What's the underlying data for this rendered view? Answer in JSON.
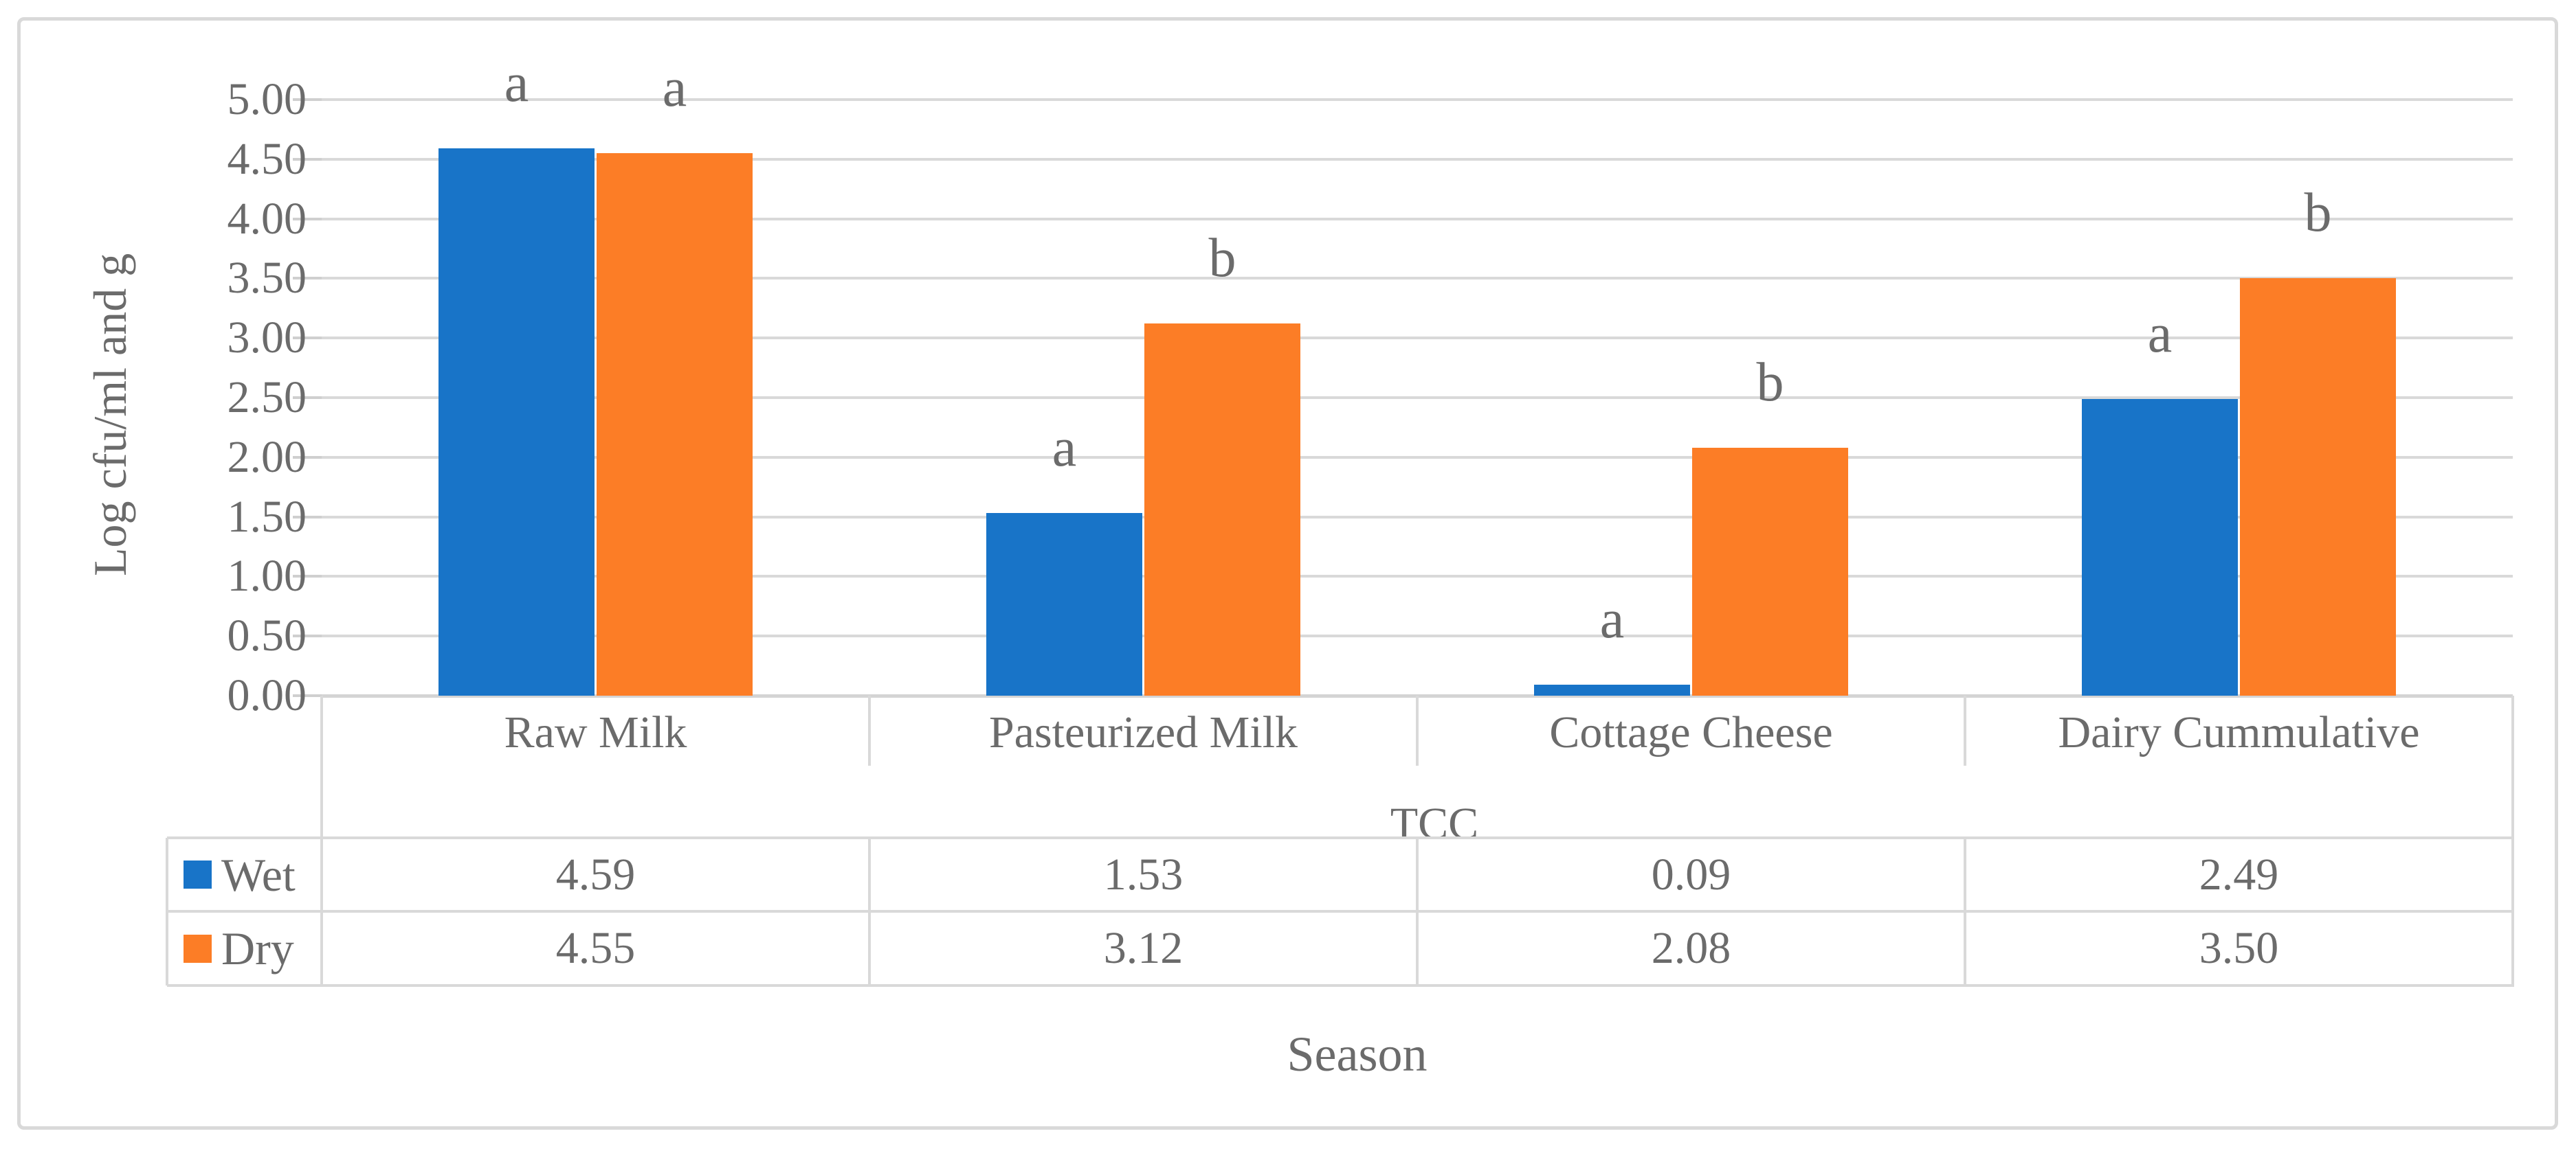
{
  "figure": {
    "frame_color": "#D9D9D9",
    "background": "#FFFFFF"
  },
  "chart_data": {
    "type": "bar",
    "title": "",
    "categories": [
      "Raw Milk",
      "Pasteurized Milk",
      "Cottage Cheese",
      "Dairy Cummulative"
    ],
    "series": [
      {
        "name": "Wet",
        "color": "#1874C8",
        "values": [
          4.59,
          1.53,
          0.09,
          2.49
        ],
        "value_labels": [
          "4.59",
          "1.53",
          "0.09",
          "2.49"
        ],
        "letters": [
          "a",
          "a",
          "a",
          "a"
        ]
      },
      {
        "name": "Dry",
        "color": "#FC7D26",
        "values": [
          4.55,
          3.12,
          2.08,
          3.5
        ],
        "value_labels": [
          "4.55",
          "3.12",
          "2.08",
          "3.50"
        ],
        "letters": [
          "a",
          "b",
          "b",
          "b"
        ]
      }
    ],
    "ylabel": "Log cfu/ml and g",
    "xlabel": "Season",
    "axis_group_label": "TCC",
    "ylim": [
      0,
      5
    ],
    "ytick_step": 0.5,
    "ytick_labels": [
      "5.00",
      "4.50",
      "4.00",
      "3.50",
      "3.00",
      "2.50",
      "2.00",
      "1.50",
      "1.00",
      "0.50",
      "0.00"
    ],
    "grid": true,
    "grid_color": "#D9D9D9",
    "text_color": "#6B6B6B",
    "legend_position": "table-left"
  }
}
